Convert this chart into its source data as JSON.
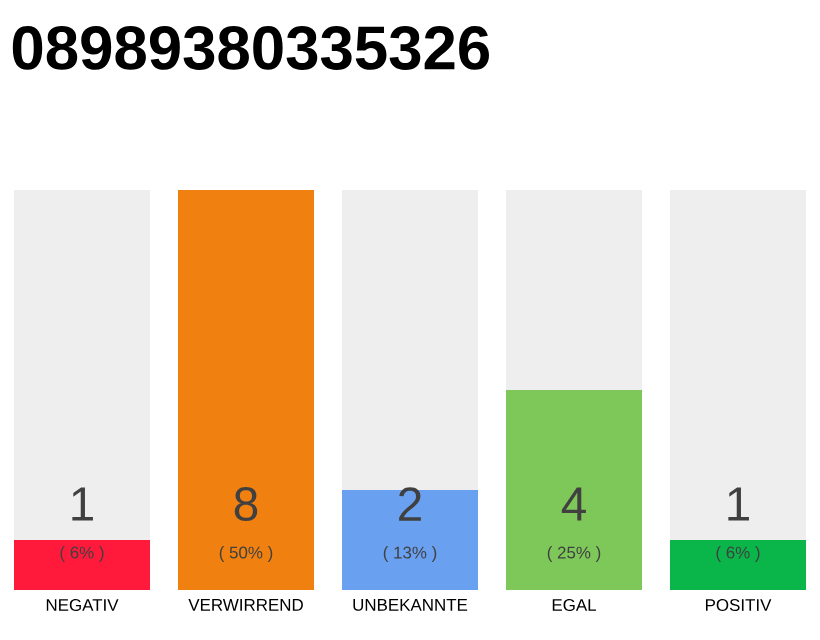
{
  "chart_data": {
    "type": "bar",
    "title": "08989380335326",
    "categories": [
      "NEGATIV",
      "VERWIRREND",
      "UNBEKANNTE",
      "EGAL",
      "POSITIV"
    ],
    "values": [
      1,
      8,
      2,
      4,
      1
    ],
    "colors": [
      "#ff1a3c",
      "#f08010",
      "#6aa0f0",
      "#7ec85a",
      "#0ab54a"
    ],
    "value_labels": [
      "1",
      "8",
      "2",
      "4",
      "1"
    ],
    "annotations": [
      "( 6% )",
      "( 50% )",
      "( 13% )",
      "( 25% )",
      "( 6% )"
    ]
  }
}
